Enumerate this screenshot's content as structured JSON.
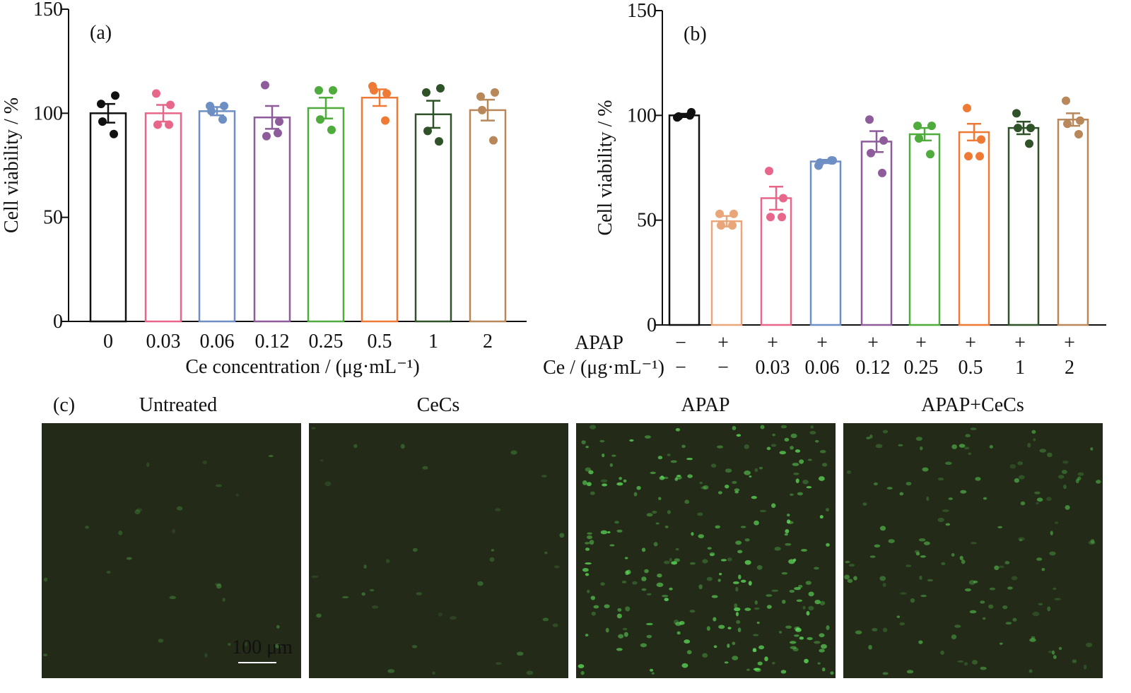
{
  "chart_data": [
    {
      "type": "bar",
      "panel_label": "(a)",
      "ylabel": "Cell viability / %",
      "xlabel": "Ce concentration / (μg·mL⁻¹)",
      "ylim": [
        0,
        150
      ],
      "yticks": [
        "0",
        "50",
        "100",
        "150"
      ],
      "categories": [
        "0",
        "0.03",
        "0.06",
        "0.12",
        "0.25",
        "0.5",
        "1",
        "2"
      ],
      "values": [
        100,
        100,
        101,
        98,
        102.5,
        107.5,
        99.5,
        101.5
      ],
      "errors": [
        4.5,
        4,
        2,
        5.5,
        5,
        4,
        6.5,
        5
      ],
      "points": [
        [
          104.5,
          108.5,
          96,
          90
        ],
        [
          109.5,
          104,
          94.5,
          94.5
        ],
        [
          103.5,
          103.5,
          101,
          97
        ],
        [
          113.5,
          96,
          89,
          90.5
        ],
        [
          111,
          111,
          97,
          92
        ],
        [
          113,
          109.5,
          111,
          96.5
        ],
        [
          110,
          112,
          91.5,
          86.5
        ],
        [
          108,
          110,
          101.5,
          87
        ]
      ],
      "colors": [
        "#111111",
        "#e8668a",
        "#6e8fc4",
        "#8e5c9a",
        "#4fab3c",
        "#ef7a35",
        "#2f5229",
        "#b8875a"
      ]
    },
    {
      "type": "bar",
      "panel_label": "(b)",
      "ylabel": "Cell viability / %",
      "ylim": [
        0,
        150
      ],
      "yticks": [
        "0",
        "50",
        "100",
        "150"
      ],
      "row_labels": [
        "APAP",
        "Ce / (μg·mL⁻¹)"
      ],
      "apap": [
        "−",
        "+",
        "+",
        "+",
        "+",
        "+",
        "+",
        "+",
        "+"
      ],
      "ce": [
        "−",
        "−",
        "0.03",
        "0.06",
        "0.12",
        "0.25",
        "0.5",
        "1",
        "2"
      ],
      "values": [
        100,
        49.5,
        60.5,
        78,
        87.5,
        91,
        92,
        94,
        98
      ],
      "errors": [
        0.8,
        2.5,
        5.5,
        0.8,
        5,
        3,
        4,
        3,
        3
      ],
      "points": [
        [
          99,
          101.5,
          99.5,
          100
        ],
        [
          53,
          53,
          47.5,
          47.5
        ],
        [
          73.5,
          60.5,
          51.5,
          51.5
        ],
        [
          76,
          78.5,
          77.5,
          78.5
        ],
        [
          98,
          88,
          82,
          72.5
        ],
        [
          95,
          95,
          89,
          81.5
        ],
        [
          103.5,
          88.5,
          80.5,
          80.5
        ],
        [
          101,
          94,
          94,
          86.5
        ],
        [
          107,
          97.5,
          96,
          91
        ]
      ],
      "colors": [
        "#111111",
        "#e9a679",
        "#e8668a",
        "#6e8fc4",
        "#8e5c9a",
        "#4fab3c",
        "#ef7a35",
        "#2f5229",
        "#b8875a"
      ]
    }
  ],
  "panel_c": {
    "label": "(c)",
    "images": [
      "Untreated",
      "CeCs",
      "APAP",
      "APAP+CeCs"
    ],
    "scale_bar": "100 μm",
    "background": "#242a18",
    "fluorescence": "#5ee05a"
  }
}
